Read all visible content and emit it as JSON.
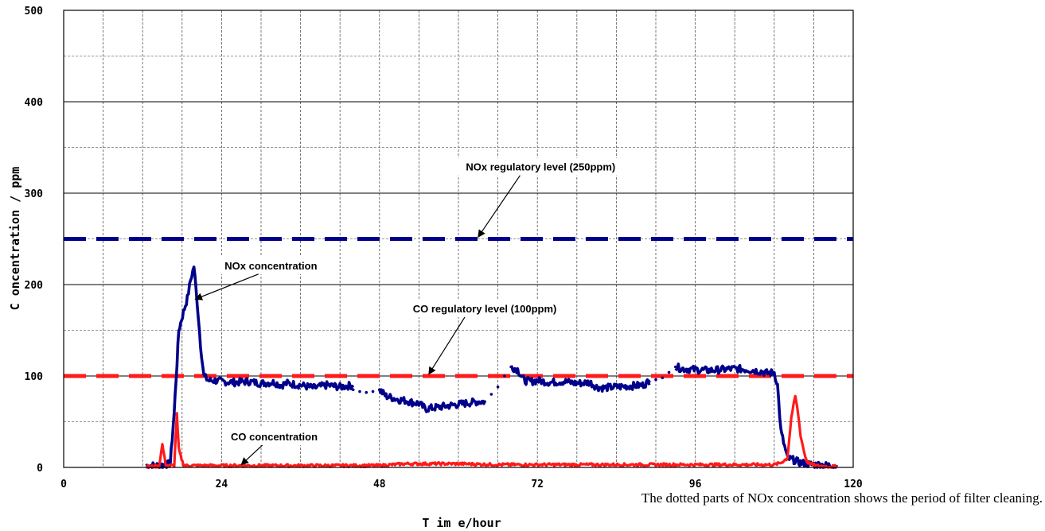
{
  "chart_data": {
    "type": "line",
    "xlabel": "T im e/hour",
    "ylabel": "C oncentration / ppm",
    "xlim": [
      0,
      120
    ],
    "ylim": [
      0,
      500
    ],
    "x_ticks": [
      0,
      24,
      48,
      72,
      96,
      120
    ],
    "y_ticks": [
      0,
      100,
      200,
      300,
      400,
      500
    ],
    "grid": true,
    "series": [
      {
        "key": "nox",
        "color": "#00008B",
        "x": [
          12.5,
          14.5,
          15.5,
          16.2,
          16.8,
          17.5,
          18.2,
          18.8,
          19.3,
          19.8,
          20.3,
          20.8,
          21.3,
          22.0,
          23,
          24,
          26,
          28,
          30,
          32,
          33,
          34,
          36,
          38,
          40,
          42,
          44
        ],
        "y": [
          2,
          2,
          3,
          4,
          60,
          150,
          170,
          185,
          205,
          220,
          180,
          135,
          100,
          95,
          95,
          94,
          93,
          94,
          92,
          93,
          90,
          92,
          90,
          87,
          90,
          88,
          90
        ],
        "noise": 4
      },
      {
        "key": "nox",
        "color": "#00008B",
        "x": [
          48,
          49,
          51,
          52,
          53,
          54,
          55,
          56,
          57,
          58,
          59,
          60,
          61,
          62,
          63,
          64
        ],
        "y": [
          85,
          78,
          74,
          73,
          71,
          70,
          64,
          65,
          66,
          67,
          68,
          69,
          70,
          71,
          72,
          72
        ],
        "noise": 4
      },
      {
        "key": "nox",
        "color": "#00008B",
        "x": [
          68,
          69,
          70,
          71,
          72,
          74,
          76,
          78,
          80,
          81,
          82,
          84,
          86,
          88,
          89
        ],
        "y": [
          110,
          107,
          95,
          94,
          95,
          93,
          94,
          92,
          93,
          88,
          87,
          88,
          89,
          90,
          94
        ],
        "noise": 4
      },
      {
        "key": "nox",
        "color": "#00008B",
        "x": [
          93,
          94,
          96,
          98,
          100,
          102,
          104,
          106,
          107,
          108,
          108.5,
          109,
          110,
          111,
          112,
          113,
          114,
          115,
          116,
          117.5
        ],
        "y": [
          110,
          108,
          107,
          106,
          107,
          108,
          107,
          105,
          103,
          104,
          90,
          40,
          10,
          8,
          5,
          4,
          3,
          3,
          2,
          2
        ],
        "noise": 4
      },
      {
        "key": "nox_dotted",
        "color": "#00008B",
        "x": [
          44,
          45,
          46,
          47,
          48
        ],
        "y": [
          85,
          83,
          82,
          83,
          85
        ],
        "dotted": true
      },
      {
        "key": "nox_dotted",
        "color": "#00008B",
        "x": [
          64,
          65,
          66,
          67,
          68
        ],
        "y": [
          72,
          80,
          88,
          100,
          110
        ],
        "dotted": true
      },
      {
        "key": "nox_dotted",
        "color": "#00008B",
        "x": [
          89,
          90,
          91,
          92,
          93
        ],
        "y": [
          94,
          96,
          98,
          104,
          110
        ],
        "dotted": true
      },
      {
        "key": "co",
        "color": "#FF1A1A",
        "x": [
          12.5,
          14.5,
          15,
          15.5,
          16,
          16.8,
          17.2,
          17.5,
          17.8,
          18.2,
          18.6,
          19,
          20,
          22,
          24,
          30,
          36,
          42,
          48,
          52,
          56,
          60,
          66,
          72,
          84,
          96,
          102,
          108,
          109,
          110,
          110.6,
          111.2,
          111.6,
          112,
          112.6,
          113,
          113.6,
          114.2,
          116,
          117.5
        ],
        "y": [
          1,
          1,
          25,
          3,
          2,
          2,
          58,
          20,
          12,
          3,
          2,
          2,
          2,
          2,
          2,
          2,
          2,
          2,
          2,
          4,
          4,
          4,
          3,
          3,
          3,
          3,
          3,
          3,
          5,
          10,
          55,
          78,
          60,
          35,
          15,
          6,
          4,
          2,
          1,
          1
        ],
        "noise": 1.5
      }
    ],
    "reference_lines": [
      {
        "key": "nox_limit",
        "y": 250,
        "color": "#00008B"
      },
      {
        "key": "co_limit",
        "y": 100,
        "color": "#FF1A1A"
      }
    ],
    "annotations": [
      {
        "key": "nox_limit_label",
        "text": "NOx regulatory level (250ppm)",
        "at": [
          72.5,
          329
        ],
        "points_to": [
          63,
          252
        ]
      },
      {
        "key": "nox_conc_label",
        "text": "NOx concentration",
        "at": [
          31.5,
          221
        ],
        "points_to": [
          20,
          184
        ]
      },
      {
        "key": "co_limit_label",
        "text": "CO regulatory level (100ppm)",
        "at": [
          64,
          174
        ],
        "points_to": [
          55.5,
          102
        ]
      },
      {
        "key": "co_conc_label",
        "text": "CO concentration",
        "at": [
          32,
          34
        ],
        "points_to": [
          27,
          3
        ]
      }
    ],
    "footnote": "The dotted parts of NOx concentration shows the period of filter cleaning."
  }
}
